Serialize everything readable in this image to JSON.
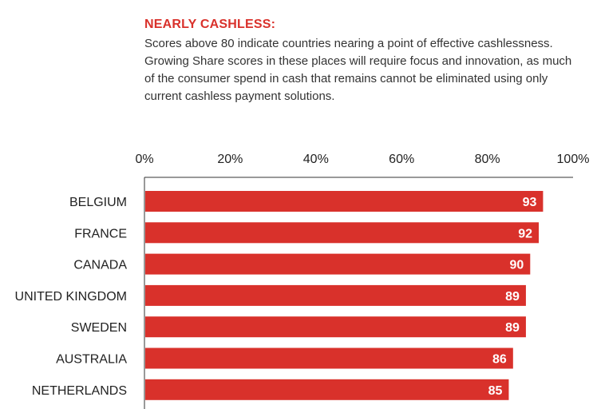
{
  "chart_data": {
    "type": "bar",
    "orientation": "horizontal",
    "title": "NEARLY CASHLESS:",
    "subtitle": "Scores above 80 indicate countries nearing a point of effective cashlessness. Growing Share scores in these places will require focus and innovation, as much of the consumer spend in cash that remains cannot be eliminated using only current cashless payment solutions.",
    "categories": [
      "BELGIUM",
      "FRANCE",
      "CANADA",
      "UNITED KINGDOM",
      "SWEDEN",
      "AUSTRALIA",
      "NETHERLANDS"
    ],
    "values": [
      93,
      92,
      90,
      89,
      89,
      86,
      85
    ],
    "x_ticks": [
      "0%",
      "20%",
      "40%",
      "60%",
      "80%",
      "100%"
    ],
    "xlim": [
      0,
      100
    ],
    "axis_position": "top",
    "grid": false,
    "bar_color": "#d9312b",
    "text_color": "#222222"
  }
}
